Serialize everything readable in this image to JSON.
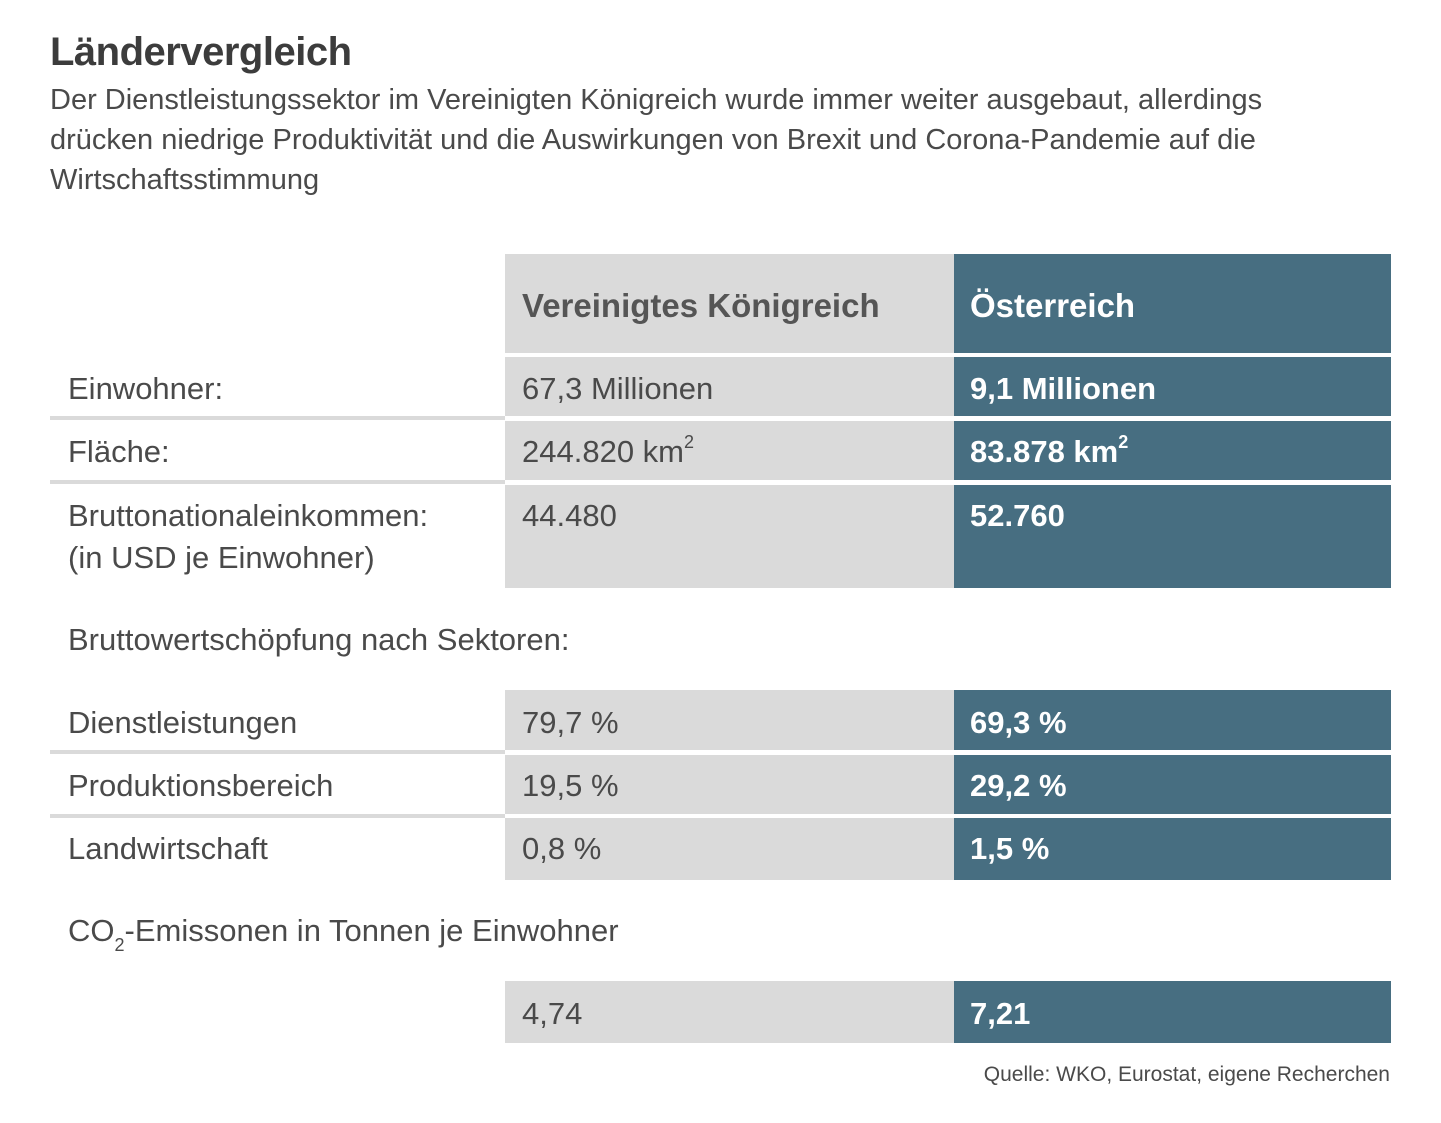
{
  "title": "Ländervergleich",
  "subtitle": "Der Dienstleistungssektor im Vereinigten Königreich wurde immer weiter ausgebaut, allerdings drücken niedrige Produktivität und die Auswirkungen von Brexit und Corona-Pandemie auf die Wirtschaftsstimmung",
  "columns": {
    "uk": "Vereinigtes Königreich",
    "at": "Österreich"
  },
  "rows": {
    "einwohner": {
      "label": "Einwohner:",
      "uk": "67,3 Millionen",
      "at": "9,1 Millionen"
    },
    "flaeche": {
      "label": "Fläche:",
      "uk": "244.820 km",
      "at": "83.878 km",
      "unit_sup": "2"
    },
    "bne": {
      "label": "Bruttonationaleinkommen:",
      "label2": "(in USD je Einwohner)",
      "uk": "44.480",
      "at": "52.760"
    }
  },
  "sectors": {
    "heading": "Bruttowertschöpfung nach Sektoren:",
    "dienst": {
      "label": "Dienstleistungen",
      "uk": "79,7 %",
      "at": "69,3 %"
    },
    "prod": {
      "label": "Produktionsbereich",
      "uk": "19,5 %",
      "at": "29,2 %"
    },
    "land": {
      "label": "Landwirtschaft",
      "uk": "0,8 %",
      "at": "1,5 %"
    }
  },
  "co2": {
    "heading_pre": "CO",
    "heading_sub": "2",
    "heading_post": "-Emissonen in Tonnen je Einwohner",
    "uk": "4,74",
    "at": "7,21"
  },
  "source": "Quelle: WKO, Eurostat, eigene Recherchen",
  "colors": {
    "teal": "#476e81",
    "gray": "#dadada",
    "text": "#3c3c3c"
  }
}
